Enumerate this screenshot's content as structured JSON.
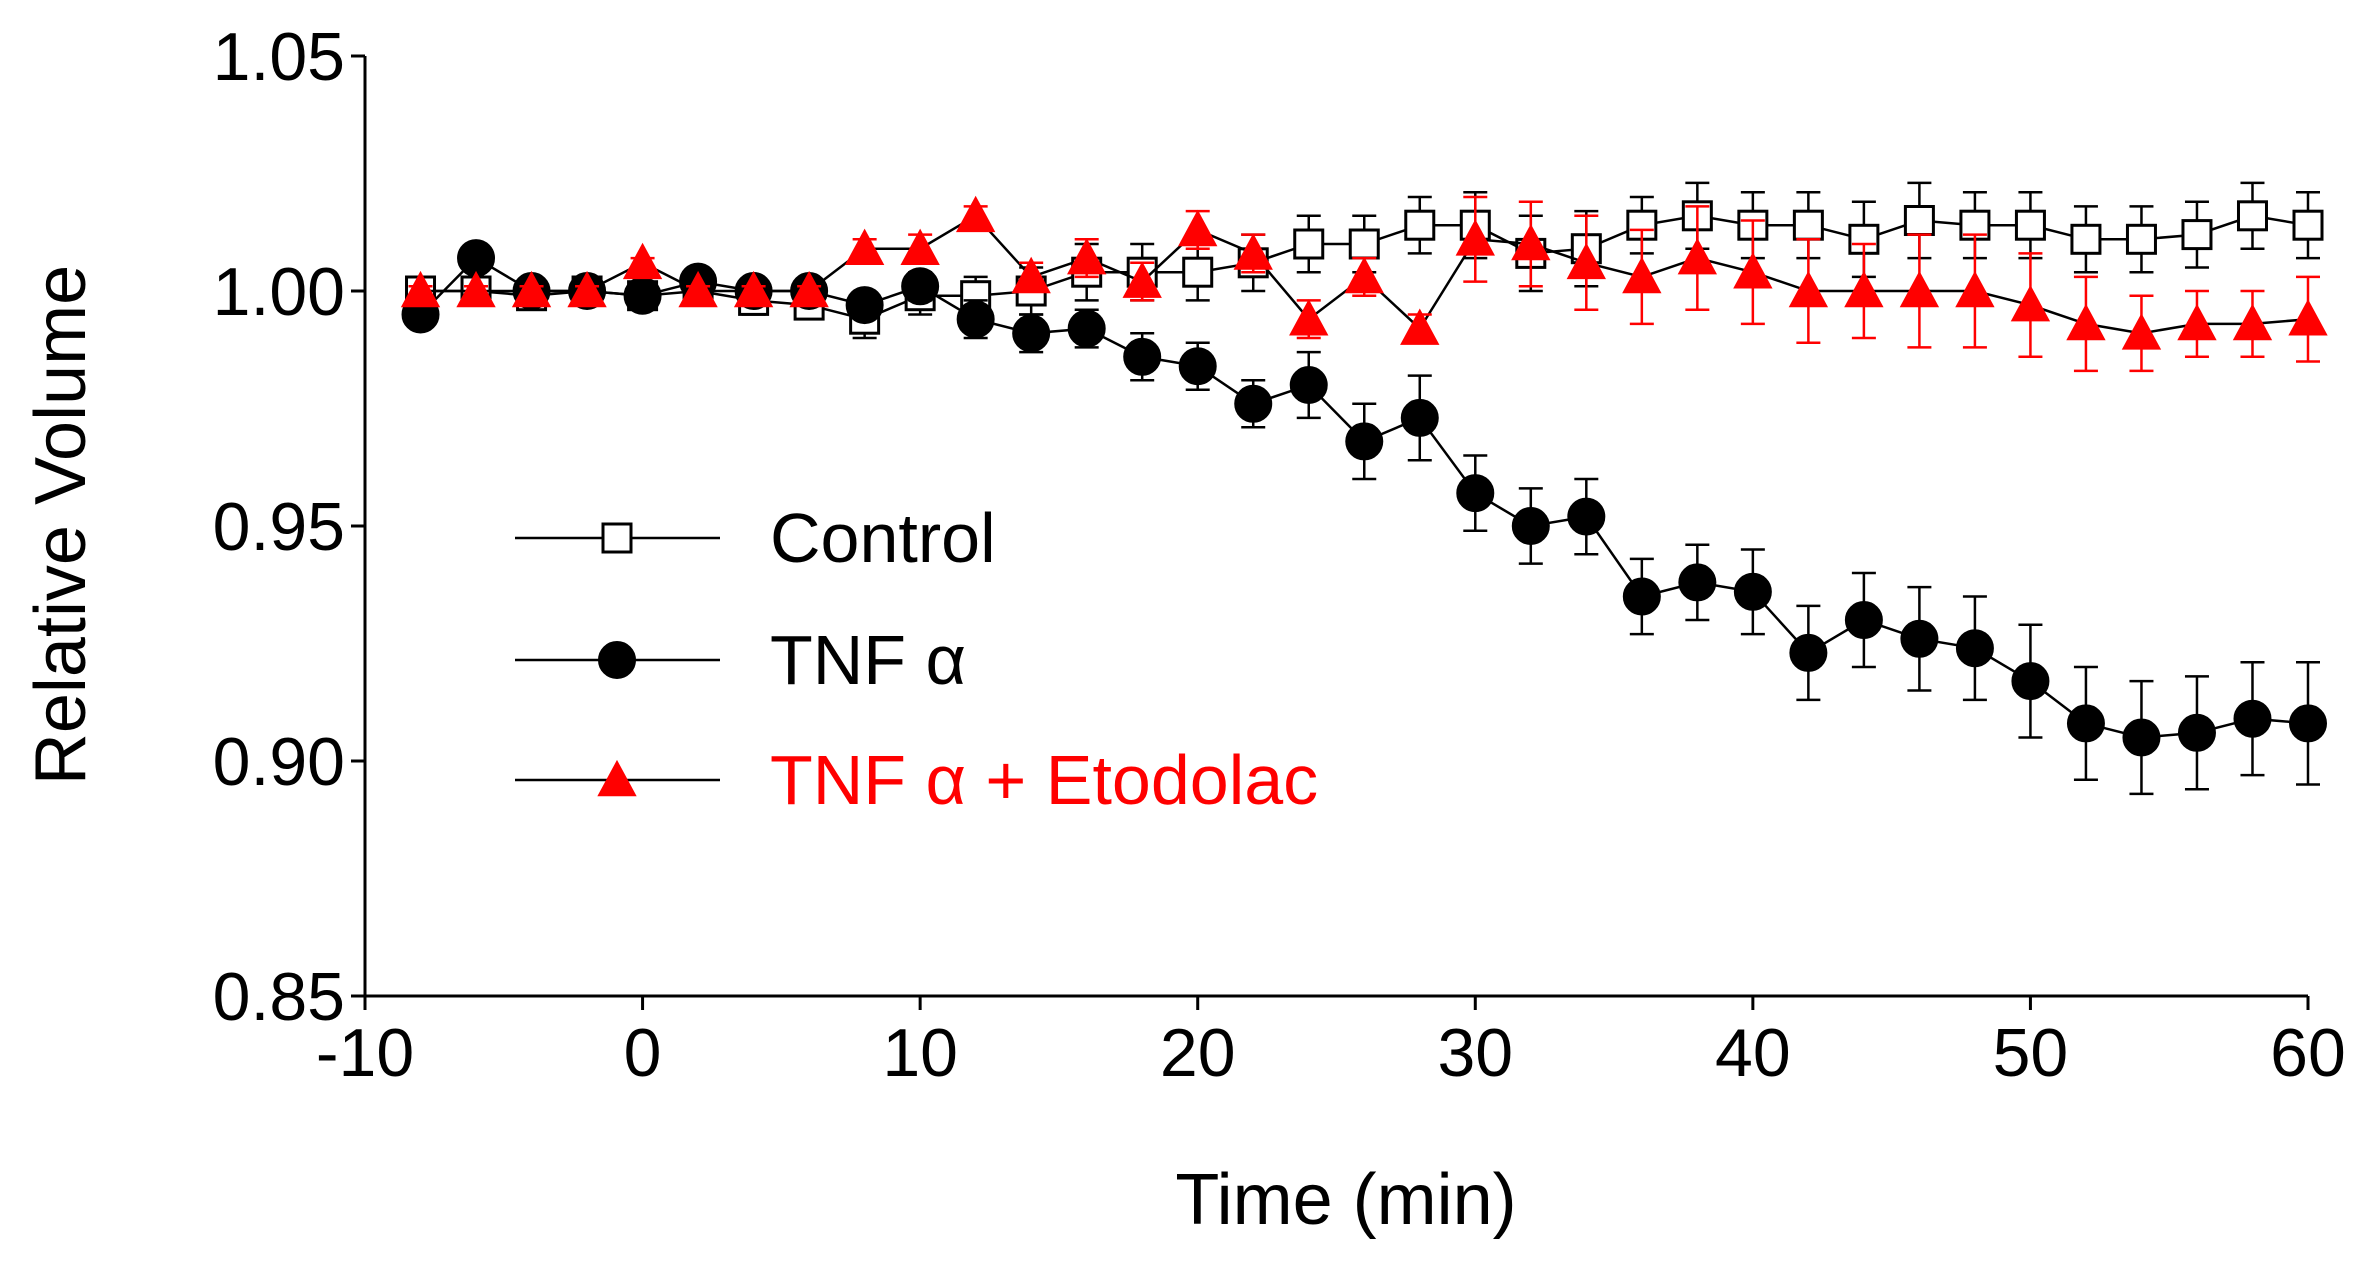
{
  "chart_data": {
    "type": "line",
    "title": "",
    "xlabel": "Time (min)",
    "ylabel": "Relative Volume",
    "xlim": [
      -10,
      60
    ],
    "ylim": [
      0.85,
      1.05
    ],
    "x_ticks": [
      -10,
      0,
      10,
      20,
      30,
      40,
      50,
      60
    ],
    "x_tick_labels": [
      "-10",
      "0",
      "10",
      "20",
      "30",
      "40",
      "50",
      "60"
    ],
    "y_ticks": [
      0.85,
      0.9,
      0.95,
      1.0,
      1.05
    ],
    "y_tick_labels": [
      "0.85",
      "0.90",
      "0.95",
      "1.00",
      "1.05"
    ],
    "grid": false,
    "legend_position": "center-left",
    "x": [
      -8,
      -6,
      -4,
      -2,
      0,
      2,
      4,
      6,
      8,
      10,
      12,
      14,
      16,
      18,
      20,
      22,
      24,
      26,
      28,
      30,
      32,
      34,
      36,
      38,
      40,
      42,
      44,
      46,
      48,
      50,
      52,
      54,
      56,
      58,
      60
    ],
    "series": [
      {
        "name": "Control",
        "marker": "open-square",
        "color": "#000000",
        "text_color": "#000000",
        "values": [
          1.0,
          1.0,
          0.999,
          1.0,
          0.999,
          1.0,
          0.998,
          0.997,
          0.994,
          0.999,
          0.999,
          1.0,
          1.004,
          1.004,
          1.004,
          1.006,
          1.01,
          1.01,
          1.014,
          1.014,
          1.008,
          1.009,
          1.014,
          1.016,
          1.014,
          1.014,
          1.011,
          1.015,
          1.014,
          1.014,
          1.011,
          1.011,
          1.012,
          1.016,
          1.014
        ],
        "errors": [
          0.001,
          0.001,
          0.002,
          0.002,
          0.002,
          0.002,
          0.003,
          0.003,
          0.004,
          0.004,
          0.004,
          0.005,
          0.006,
          0.006,
          0.006,
          0.006,
          0.006,
          0.006,
          0.006,
          0.007,
          0.008,
          0.008,
          0.006,
          0.007,
          0.007,
          0.007,
          0.008,
          0.008,
          0.007,
          0.007,
          0.007,
          0.007,
          0.007,
          0.007,
          0.007
        ]
      },
      {
        "name": "TNF α",
        "marker": "filled-circle",
        "color": "#000000",
        "text_color": "#000000",
        "values": [
          0.995,
          1.007,
          1.0,
          1.0,
          0.999,
          1.002,
          1.0,
          1.0,
          0.997,
          1.001,
          0.994,
          0.991,
          0.992,
          0.986,
          0.984,
          0.976,
          0.98,
          0.968,
          0.973,
          0.957,
          0.95,
          0.952,
          0.935,
          0.938,
          0.936,
          0.923,
          0.93,
          0.926,
          0.924,
          0.917,
          0.908,
          0.905,
          0.906,
          0.909,
          0.908
        ],
        "errors": [
          0.001,
          0.001,
          0.001,
          0.001,
          0.001,
          0.001,
          0.001,
          0.001,
          0.002,
          0.003,
          0.004,
          0.004,
          0.004,
          0.005,
          0.005,
          0.005,
          0.007,
          0.008,
          0.009,
          0.008,
          0.008,
          0.008,
          0.008,
          0.008,
          0.009,
          0.01,
          0.01,
          0.011,
          0.011,
          0.012,
          0.012,
          0.012,
          0.012,
          0.012,
          0.013
        ]
      },
      {
        "name": "TNF α + Etodolac",
        "marker": "filled-triangle",
        "color": "#ff0000",
        "line_color": "#000000",
        "text_color": "#ff0000",
        "values": [
          1.0,
          1.0,
          1.0,
          1.0,
          1.006,
          1.0,
          1.0,
          1.0,
          1.009,
          1.009,
          1.016,
          1.003,
          1.007,
          1.002,
          1.013,
          1.008,
          0.994,
          1.003,
          0.992,
          1.011,
          1.01,
          1.006,
          1.003,
          1.007,
          1.004,
          1.0,
          1.0,
          1.0,
          1.0,
          0.997,
          0.993,
          0.991,
          0.993,
          0.993,
          0.994
        ],
        "errors": [
          0.001,
          0.001,
          0.001,
          0.001,
          0.001,
          0.001,
          0.001,
          0.001,
          0.002,
          0.003,
          0.002,
          0.003,
          0.004,
          0.004,
          0.004,
          0.004,
          0.004,
          0.004,
          0.003,
          0.009,
          0.009,
          0.01,
          0.01,
          0.011,
          0.011,
          0.011,
          0.01,
          0.012,
          0.012,
          0.011,
          0.01,
          0.008,
          0.007,
          0.007,
          0.009
        ]
      }
    ]
  }
}
